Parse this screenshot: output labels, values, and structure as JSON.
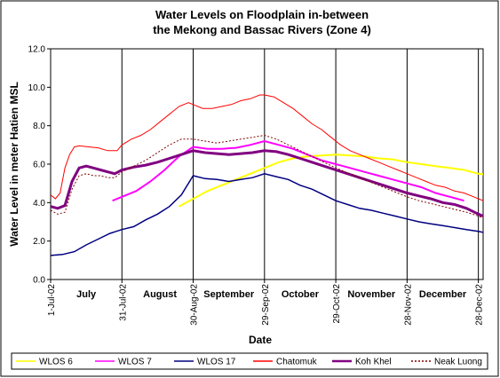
{
  "chart_data": {
    "type": "line",
    "title_line1": "Water Levels on Floodplain in-between",
    "title_line2": "the Mekong and Bassac Rivers (Zone 4)",
    "xlabel": "Date",
    "ylabel": "Water Level in meter Hatien MSL",
    "ylim": [
      0,
      12
    ],
    "y_ticks": [
      "0.0",
      "2.0",
      "4.0",
      "6.0",
      "8.0",
      "10.0",
      "12.0"
    ],
    "x_range_days": [
      0,
      182
    ],
    "x_tick_labels": [
      {
        "label": "1-Jul-02",
        "day": 0
      },
      {
        "label": "31-Jul-02",
        "day": 30
      },
      {
        "label": "30-Aug-02",
        "day": 60
      },
      {
        "label": "29-Sep-02",
        "day": 90
      },
      {
        "label": "29-Oct-02",
        "day": 120
      },
      {
        "label": "28-Nov-02",
        "day": 150
      },
      {
        "label": "28-Dec-02",
        "day": 180
      }
    ],
    "month_labels": [
      {
        "label": "July",
        "day": 15
      },
      {
        "label": "August",
        "day": 46
      },
      {
        "label": "September",
        "day": 75
      },
      {
        "label": "October",
        "day": 105
      },
      {
        "label": "November",
        "day": 135
      },
      {
        "label": "December",
        "day": 165
      }
    ],
    "grid": "vertical",
    "legend_position": "bottom",
    "series": [
      {
        "name": "WLOS 6",
        "color": "#ffff00",
        "x": [
          54,
          60,
          66,
          72,
          78,
          84,
          90,
          96,
          102,
          108,
          114,
          120,
          126,
          132,
          138,
          144,
          150,
          156,
          162,
          168,
          174,
          180,
          184
        ],
        "y": [
          3.8,
          4.2,
          4.6,
          4.9,
          5.2,
          5.5,
          5.8,
          6.1,
          6.3,
          6.4,
          6.45,
          6.5,
          6.45,
          6.4,
          6.3,
          6.25,
          6.1,
          6.0,
          5.9,
          5.8,
          5.7,
          5.5,
          5.45
        ]
      },
      {
        "name": "WLOS 7",
        "color": "#ff00ff",
        "x": [
          26,
          30,
          36,
          42,
          48,
          54,
          60,
          66,
          72,
          78,
          84,
          90,
          96,
          102,
          108,
          114,
          120,
          126,
          132,
          138,
          144,
          150,
          156,
          162,
          168,
          174
        ],
        "y": [
          4.1,
          4.3,
          4.6,
          5.1,
          5.7,
          6.4,
          6.9,
          6.8,
          6.8,
          6.85,
          7.0,
          7.2,
          7.0,
          6.8,
          6.5,
          6.2,
          6.0,
          5.8,
          5.6,
          5.4,
          5.2,
          5.0,
          4.8,
          4.5,
          4.3,
          4.1
        ]
      },
      {
        "name": "WLOS 17",
        "color": "#000080",
        "x": [
          0,
          5,
          10,
          15,
          20,
          25,
          30,
          35,
          40,
          45,
          50,
          55,
          60,
          65,
          70,
          75,
          80,
          85,
          90,
          95,
          100,
          105,
          110,
          115,
          120,
          125,
          130,
          135,
          140,
          145,
          150,
          155,
          160,
          165,
          170,
          175,
          180,
          184
        ],
        "y": [
          1.25,
          1.3,
          1.45,
          1.8,
          2.1,
          2.4,
          2.6,
          2.75,
          3.1,
          3.4,
          3.8,
          4.4,
          5.4,
          5.25,
          5.2,
          5.1,
          5.2,
          5.3,
          5.5,
          5.35,
          5.2,
          4.9,
          4.7,
          4.4,
          4.1,
          3.9,
          3.7,
          3.6,
          3.45,
          3.3,
          3.15,
          3.0,
          2.9,
          2.8,
          2.7,
          2.6,
          2.5,
          2.4
        ]
      },
      {
        "name": "Chatomuk",
        "color": "#ff0000",
        "x": [
          0,
          2,
          4,
          6,
          8,
          10,
          12,
          16,
          20,
          24,
          28,
          30,
          34,
          38,
          42,
          46,
          50,
          54,
          58,
          60,
          64,
          68,
          72,
          76,
          80,
          84,
          88,
          90,
          94,
          98,
          102,
          106,
          110,
          114,
          118,
          122,
          126,
          130,
          134,
          138,
          142,
          146,
          150,
          154,
          158,
          162,
          166,
          170,
          174,
          178,
          182,
          184
        ],
        "y": [
          4.4,
          4.2,
          4.5,
          5.8,
          6.5,
          6.9,
          6.95,
          6.9,
          6.85,
          6.7,
          6.7,
          7.0,
          7.3,
          7.5,
          7.8,
          8.2,
          8.6,
          9.0,
          9.2,
          9.1,
          8.9,
          8.9,
          9.0,
          9.1,
          9.3,
          9.4,
          9.6,
          9.6,
          9.5,
          9.2,
          8.9,
          8.5,
          8.1,
          7.8,
          7.4,
          7.0,
          6.7,
          6.5,
          6.3,
          6.1,
          5.9,
          5.7,
          5.5,
          5.3,
          5.1,
          4.9,
          4.8,
          4.6,
          4.5,
          4.3,
          4.1,
          4.0
        ]
      },
      {
        "name": "Koh Khel",
        "color": "#800080",
        "x": [
          0,
          3,
          6,
          9,
          12,
          15,
          18,
          21,
          24,
          27,
          30,
          35,
          40,
          45,
          50,
          55,
          60,
          65,
          70,
          75,
          80,
          85,
          90,
          95,
          100,
          105,
          110,
          115,
          120,
          125,
          130,
          135,
          140,
          145,
          150,
          155,
          160,
          165,
          170,
          175,
          180,
          184
        ],
        "y": [
          3.8,
          3.7,
          3.85,
          5.1,
          5.8,
          5.9,
          5.8,
          5.7,
          5.6,
          5.5,
          5.7,
          5.85,
          5.95,
          6.1,
          6.3,
          6.5,
          6.7,
          6.6,
          6.55,
          6.5,
          6.55,
          6.6,
          6.7,
          6.65,
          6.5,
          6.3,
          6.1,
          5.9,
          5.7,
          5.5,
          5.3,
          5.1,
          4.9,
          4.7,
          4.5,
          4.35,
          4.2,
          4.0,
          3.9,
          3.7,
          3.4,
          3.2
        ]
      },
      {
        "name": "Neak Luong",
        "color": "#800000",
        "dashed": true,
        "x": [
          0,
          3,
          6,
          9,
          12,
          15,
          18,
          21,
          24,
          27,
          30,
          35,
          40,
          45,
          50,
          55,
          60,
          65,
          70,
          75,
          80,
          85,
          90,
          95,
          100,
          105,
          110,
          115,
          120,
          125,
          130,
          135,
          140,
          145,
          150,
          155,
          160,
          165,
          170,
          175,
          180,
          184
        ],
        "y": [
          3.6,
          3.4,
          3.5,
          4.7,
          5.4,
          5.5,
          5.4,
          5.4,
          5.3,
          5.3,
          5.6,
          5.9,
          6.2,
          6.6,
          7.0,
          7.3,
          7.3,
          7.2,
          7.1,
          7.2,
          7.3,
          7.4,
          7.5,
          7.3,
          7.0,
          6.7,
          6.4,
          6.1,
          5.8,
          5.55,
          5.3,
          5.05,
          4.8,
          4.55,
          4.3,
          4.1,
          3.95,
          3.8,
          3.65,
          3.5,
          3.3,
          3.1
        ]
      }
    ]
  }
}
